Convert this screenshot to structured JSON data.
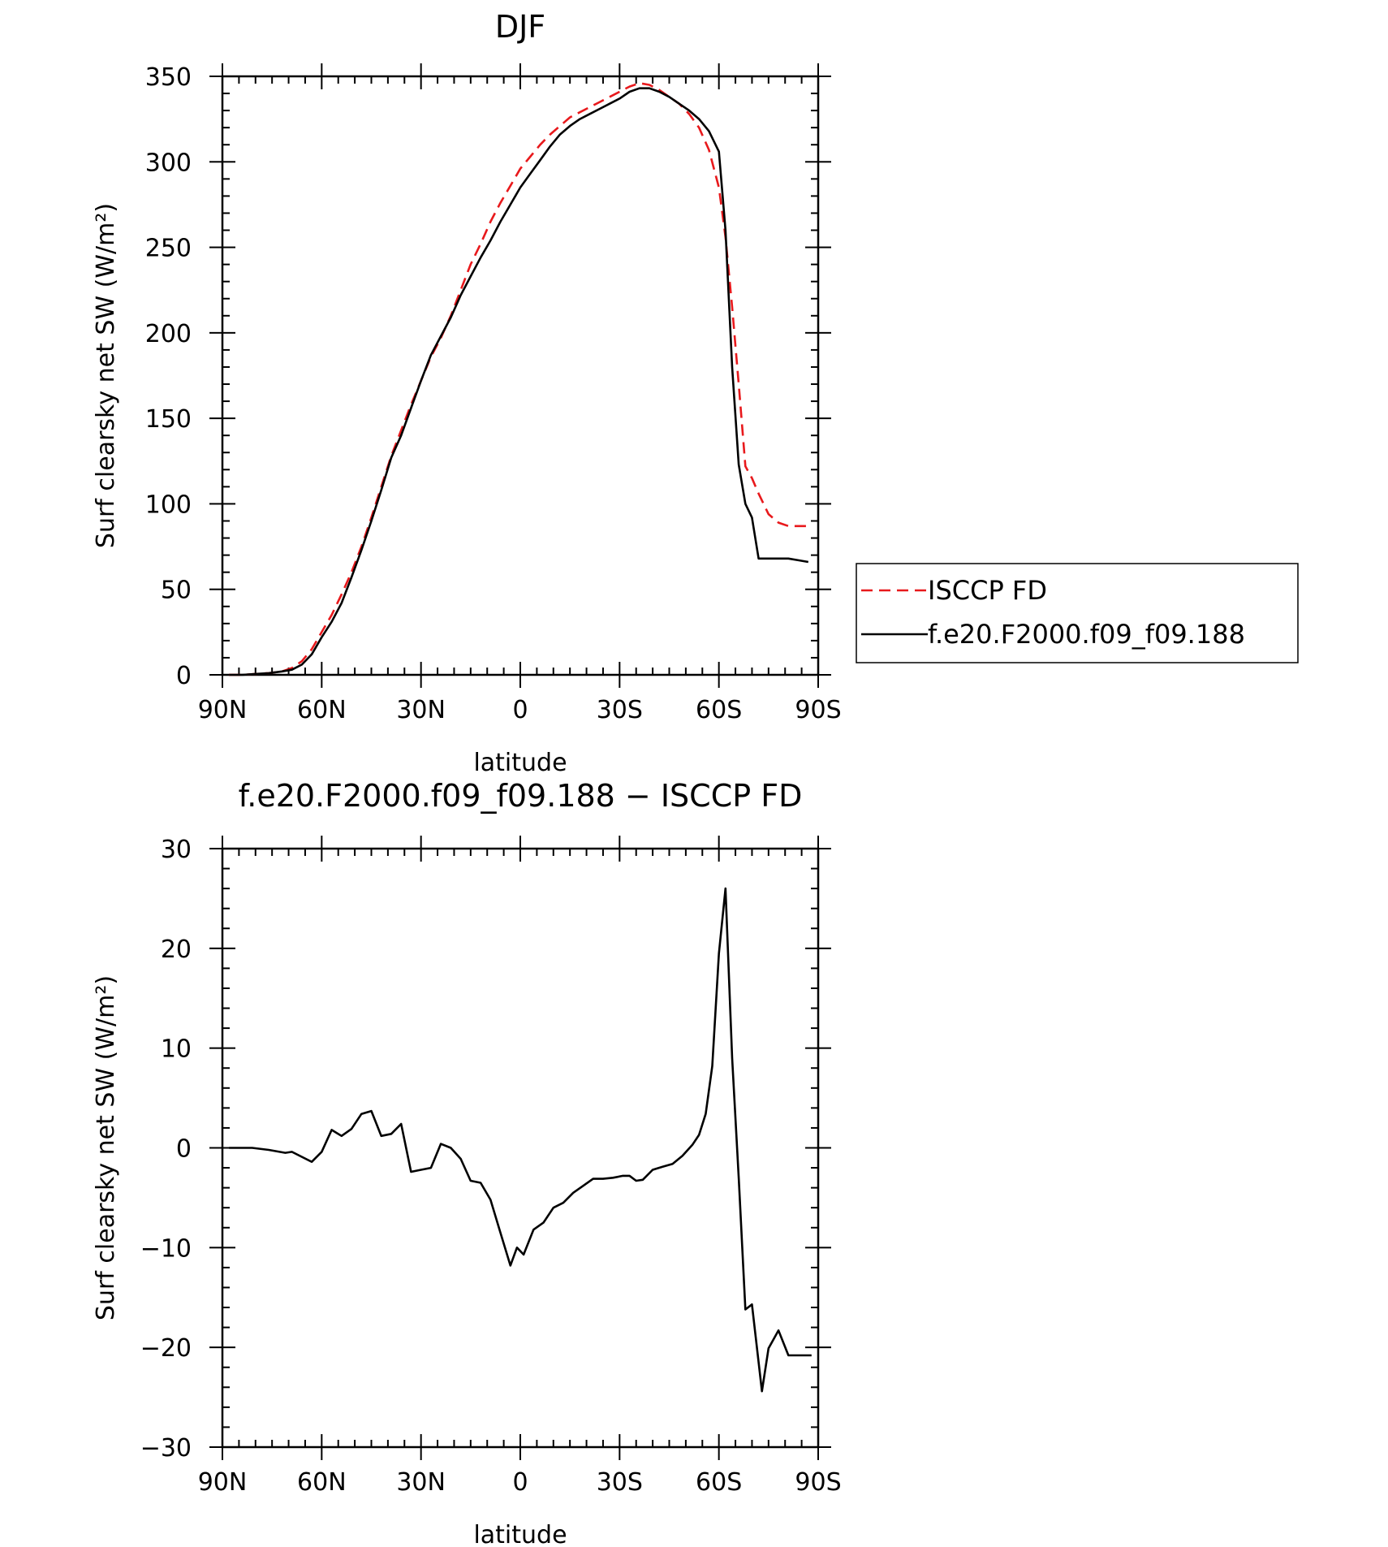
{
  "chart_data": [
    {
      "type": "line",
      "title": "DJF",
      "xlabel": "latitude",
      "ylabel": "Surf clearsky net SW (W/m²)",
      "xlim": [
        -90,
        90
      ],
      "ylim": [
        0,
        350
      ],
      "xticks": [
        -90,
        -60,
        -30,
        0,
        30,
        60,
        90
      ],
      "xtick_labels": [
        "90N",
        "60N",
        "30N",
        "0",
        "30S",
        "60S",
        "90S"
      ],
      "yticks": [
        0,
        50,
        100,
        150,
        200,
        250,
        300,
        350
      ],
      "ytick_labels": [
        "0",
        "50",
        "100",
        "150",
        "200",
        "250",
        "300",
        "350"
      ],
      "grid": false,
      "legend_position": "right",
      "x": [
        -88,
        -84,
        -80,
        -76,
        -72,
        -69,
        -66,
        -63,
        -60,
        -57,
        -54,
        -51,
        -48,
        -45,
        -42,
        -39,
        -36,
        -33,
        -30,
        -27,
        -24,
        -21,
        -18,
        -15,
        -12,
        -9,
        -6,
        -3,
        0,
        3,
        6,
        9,
        12,
        15,
        18,
        21,
        24,
        27,
        30,
        33,
        36,
        39,
        42,
        45,
        48,
        51,
        54,
        57,
        60,
        62,
        64,
        66,
        68,
        70,
        72,
        75,
        78,
        81,
        84,
        87
      ],
      "series": [
        {
          "name": "ISCCP FD",
          "color": "#e8191c",
          "style": "dashed",
          "values": [
            0,
            0,
            0.5,
            1,
            2,
            4,
            8,
            15,
            25,
            35,
            47,
            60,
            75,
            92,
            110,
            128,
            143,
            158,
            172,
            186,
            197,
            210,
            225,
            240,
            252,
            265,
            276,
            286,
            296,
            303,
            310,
            316,
            321,
            326,
            329,
            332,
            335,
            338,
            341,
            344,
            346,
            345,
            342,
            338,
            334,
            328,
            320,
            307,
            285,
            256,
            215,
            170,
            122,
            115,
            106,
            94,
            89,
            87,
            87,
            87
          ]
        },
        {
          "name": "f.e20.F2000.f09_f09.188",
          "color": "#000000",
          "style": "solid",
          "values": [
            0,
            0,
            0.5,
            1,
            2,
            3,
            6,
            12,
            22,
            31,
            42,
            57,
            73,
            90,
            108,
            127,
            140,
            156,
            172,
            187,
            198,
            209,
            222,
            233,
            244,
            254,
            265,
            275,
            285,
            293,
            301,
            309,
            316,
            321,
            325,
            328,
            331,
            334,
            337,
            341,
            343,
            343,
            341,
            338,
            334,
            330,
            325,
            318,
            306,
            260,
            180,
            123,
            100,
            92,
            68,
            68,
            68,
            68,
            67,
            66
          ]
        }
      ]
    },
    {
      "type": "line",
      "title": "f.e20.F2000.f09_f09.188 − ISCCP FD",
      "xlabel": "latitude",
      "ylabel": "Surf clearsky net SW (W/m²)",
      "xlim": [
        -90,
        90
      ],
      "ylim": [
        -30,
        30
      ],
      "xticks": [
        -90,
        -60,
        -30,
        0,
        30,
        60,
        90
      ],
      "xtick_labels": [
        "90N",
        "60N",
        "30N",
        "0",
        "30S",
        "60S",
        "90S"
      ],
      "yticks": [
        -30,
        -20,
        -10,
        0,
        10,
        20,
        30
      ],
      "ytick_labels": [
        "−30",
        "−20",
        "−10",
        "0",
        "10",
        "20",
        "30"
      ],
      "grid": false,
      "x": [
        -88,
        -81,
        -76,
        -71,
        -69,
        -63,
        -60,
        -57,
        -54,
        -51,
        -48,
        -45,
        -42,
        -39,
        -36,
        -33,
        -30,
        -27,
        -24,
        -21,
        -18,
        -15,
        -12,
        -9,
        -6,
        -3,
        -1,
        1,
        4,
        7,
        10,
        13,
        16,
        19,
        22,
        25,
        28,
        31,
        33,
        35,
        37,
        40,
        43,
        46,
        49,
        52,
        54,
        56,
        58,
        60,
        62,
        64,
        66,
        68,
        70,
        73,
        75,
        78,
        81,
        84,
        86,
        88
      ],
      "series": [
        {
          "name": "",
          "color": "#000000",
          "style": "solid",
          "values": [
            0,
            0,
            -0.2,
            -0.5,
            -0.4,
            -1.4,
            -0.4,
            1.8,
            1.2,
            1.9,
            3.4,
            3.7,
            1.2,
            1.4,
            2.4,
            -2.4,
            -2.2,
            -2.0,
            0.4,
            0.0,
            -1.1,
            -3.3,
            -3.5,
            -5.2,
            -8.5,
            -11.8,
            -10.0,
            -10.7,
            -8.2,
            -7.5,
            -6.0,
            -5.5,
            -4.5,
            -3.8,
            -3.1,
            -3.1,
            -3.0,
            -2.8,
            -2.8,
            -3.3,
            -3.2,
            -2.2,
            -1.9,
            -1.6,
            -0.8,
            0.3,
            1.3,
            3.4,
            8.2,
            19.5,
            26.0,
            9.0,
            -3.0,
            -16.2,
            -15.7,
            -24.4,
            -20.1,
            -18.3,
            -20.8,
            -20.8,
            -20.8,
            -20.8
          ]
        }
      ]
    }
  ]
}
